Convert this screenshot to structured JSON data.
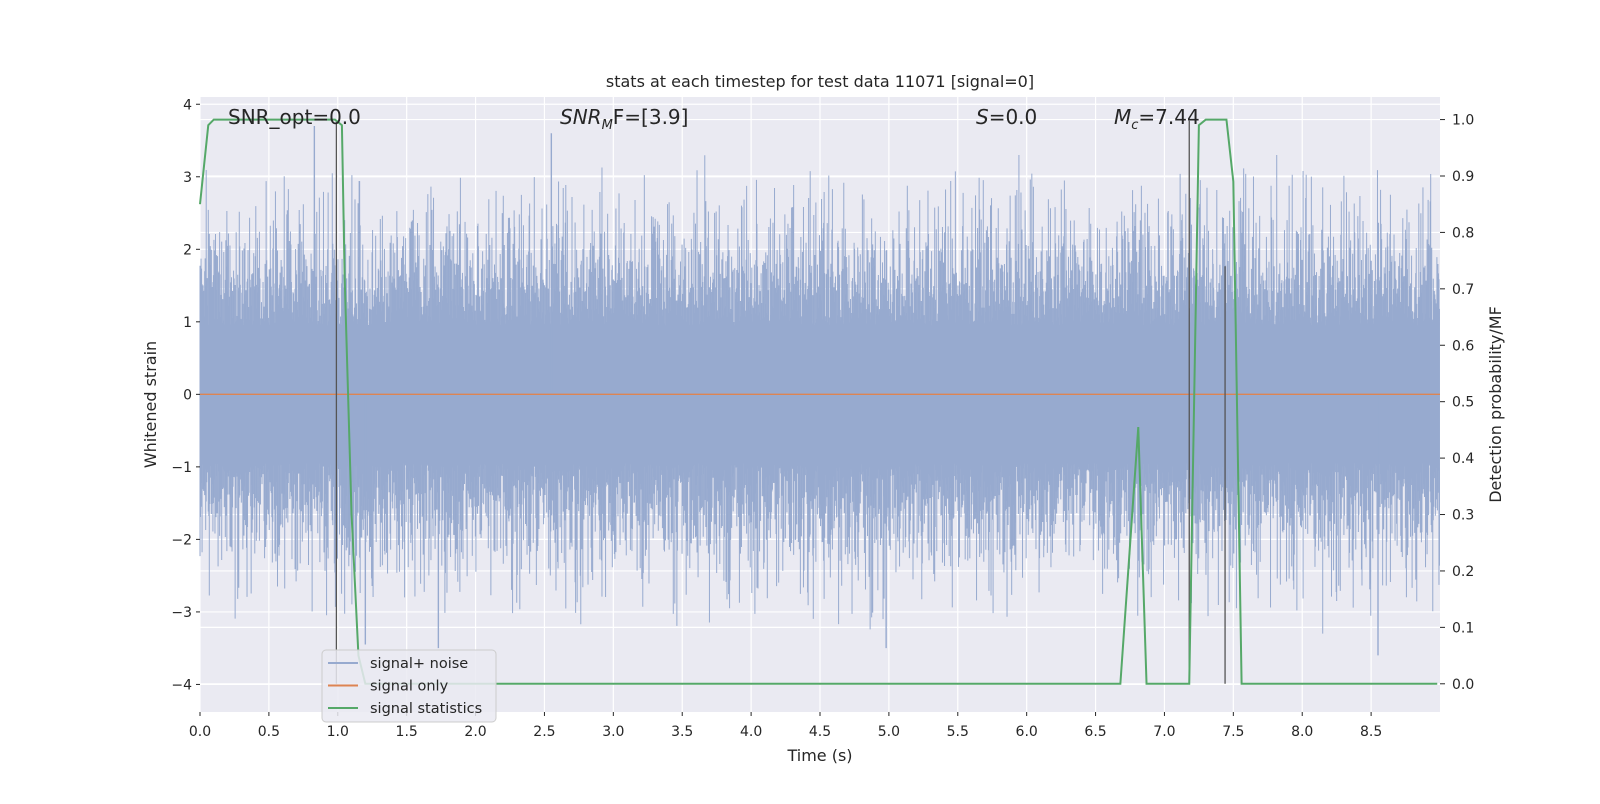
{
  "chart_data": {
    "type": "line",
    "title": "stats at each timestep for test data 11071 [signal=0]",
    "xlabel": "Time (s)",
    "ylabel": "Whitened strain",
    "y2label": "Detection probability/MF",
    "xlim": [
      0.0,
      9.0
    ],
    "ylim": [
      -4.38,
      4.1
    ],
    "y2lim": [
      -0.05,
      1.04
    ],
    "xticks": [
      0.0,
      0.5,
      1.0,
      1.5,
      2.0,
      2.5,
      3.0,
      3.5,
      4.0,
      4.5,
      5.0,
      5.5,
      6.0,
      6.5,
      7.0,
      7.5,
      8.0,
      8.5
    ],
    "xtick_labels": [
      "0.0",
      "0.5",
      "1.0",
      "1.5",
      "2.0",
      "2.5",
      "3.0",
      "3.5",
      "4.0",
      "4.5",
      "5.0",
      "5.5",
      "6.0",
      "6.5",
      "7.0",
      "7.5",
      "8.0",
      "8.5"
    ],
    "yticks": [
      4,
      3,
      2,
      1,
      0,
      -1,
      -2,
      -3,
      -4
    ],
    "ytick_labels": [
      "4",
      "3",
      "2",
      "1",
      "0",
      "−1",
      "−2",
      "−3",
      "−4"
    ],
    "y2ticks": [
      1.0,
      0.9,
      0.8,
      0.7,
      0.6,
      0.5,
      0.4,
      0.3,
      0.2,
      0.1,
      0.0
    ],
    "y2tick_labels": [
      "1.0",
      "0.9",
      "0.8",
      "0.7",
      "0.6",
      "0.5",
      "0.4",
      "0.3",
      "0.2",
      "0.1",
      "0.0"
    ],
    "grid": true,
    "legend_location": "lower-left",
    "annotations": {
      "snr_opt": "SNR_opt=0.0",
      "snr_mf_main": "SNR",
      "snr_mf_sub": "M",
      "snr_mf_rest": "F=[3.9]",
      "s_main": "S",
      "s_rest": "=0.0",
      "mc_main": "M",
      "mc_sub": "c",
      "mc_rest": "=7.44"
    },
    "series": [
      {
        "name": "signal+ noise",
        "color": "#97aacf",
        "axis": "left",
        "description_of_shape": "noise band",
        "band_core": [
          -1.0,
          1.05
        ],
        "typical_extremes": [
          -3.0,
          3.0
        ],
        "peaks": [
          {
            "x": 0.83,
            "y": 3.7
          },
          {
            "x": 2.55,
            "y": 3.6
          },
          {
            "x": 4.98,
            "y": -3.5
          },
          {
            "x": 8.55,
            "y": -3.6
          },
          {
            "x": 1.73,
            "y": -3.5
          },
          {
            "x": 1.2,
            "y": -3.45
          }
        ],
        "seed": 11071
      },
      {
        "name": "signal only",
        "color": "#dd8452",
        "axis": "left",
        "x": [
          0.0,
          9.0
        ],
        "y": [
          0.0,
          0.0
        ]
      },
      {
        "name": "signal statistics",
        "color": "#55a868",
        "axis": "right",
        "x": [
          0.0,
          0.06,
          0.1,
          0.2,
          0.5,
          0.8,
          0.98,
          1.03,
          1.05,
          1.1,
          1.15,
          1.2,
          1.5,
          3.0,
          5.0,
          6.5,
          6.68,
          6.81,
          6.87,
          7.0,
          7.1,
          7.18,
          7.25,
          7.3,
          7.45,
          7.5,
          7.56,
          7.6,
          8.0,
          8.5,
          8.98
        ],
        "y": [
          0.85,
          0.99,
          1.0,
          1.0,
          1.0,
          1.0,
          1.0,
          0.99,
          0.72,
          0.3,
          0.05,
          0.0,
          0.0,
          0.0,
          0.0,
          0.0,
          0.0,
          0.455,
          0.0,
          0.0,
          0.0,
          0.0,
          0.99,
          1.0,
          1.0,
          0.89,
          0.0,
          0.0,
          0.0,
          0.0,
          0.0
        ]
      }
    ],
    "vertical_markers": [
      {
        "x": 0.99,
        "y_top": 0.998,
        "y_bottom": 0.0,
        "color": "#555555"
      },
      {
        "x": 7.18,
        "y_top": 0.998,
        "y_bottom": 0.0,
        "color": "#555555"
      },
      {
        "x": 7.44,
        "y_top": 0.74,
        "y_bottom": 0.0,
        "color": "#555555"
      }
    ],
    "legend": [
      {
        "label": "signal+ noise",
        "color": "#97aacf"
      },
      {
        "label": "signal only",
        "color": "#dd8452"
      },
      {
        "label": "signal statistics",
        "color": "#55a868"
      }
    ]
  },
  "colors": {
    "plot_background": "#eaeaf2",
    "grid": "#ffffff",
    "text": "#262626"
  }
}
